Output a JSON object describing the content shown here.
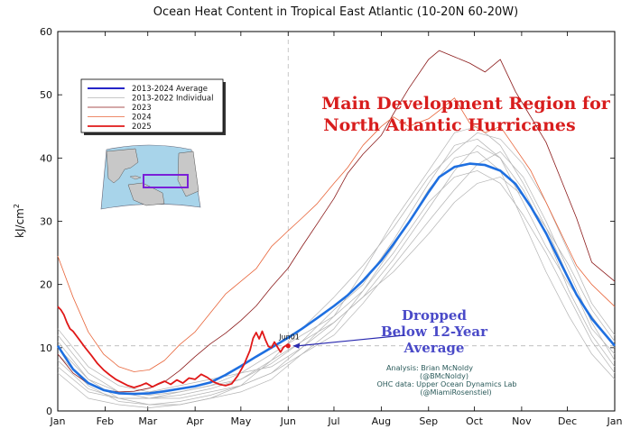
{
  "chart_data": {
    "type": "line",
    "title": "Ocean Heat Content in Tropical East Atlantic (10-20N 60-20W)",
    "xlabel": "",
    "ylabel": "kJ/cm",
    "ylabel_superscript": "2",
    "xlim": [
      0,
      365
    ],
    "ylim": [
      0,
      60
    ],
    "yticks": [
      0,
      10,
      20,
      30,
      40,
      50,
      60
    ],
    "month_labels": [
      "Jan",
      "Feb",
      "Mar",
      "Apr",
      "May",
      "Jun",
      "Jul",
      "Aug",
      "Sep",
      "Oct",
      "Nov",
      "Dec",
      "Jan"
    ],
    "month_days": [
      0,
      31,
      59,
      90,
      120,
      151,
      181,
      212,
      243,
      273,
      304,
      334,
      365
    ],
    "reference_line": {
      "y": 10.3,
      "style": "dashed"
    },
    "vline_day": 151,
    "legend": {
      "position": "upper-left",
      "entries": [
        {
          "label": "2013-2024 Average",
          "color": "#2626c8",
          "width": 2
        },
        {
          "label": "2013-2022 Individual",
          "color": "#b4b4b4",
          "width": 0.8
        },
        {
          "label": "2023",
          "color": "#8b1a1a",
          "width": 0.8
        },
        {
          "label": "2024",
          "color": "#e8653a",
          "width": 0.8
        },
        {
          "label": "2025",
          "color": "#e01818",
          "width": 1.8
        }
      ]
    },
    "series": [
      {
        "name": "2013-2024 Average",
        "color": "#1e6fe0",
        "width": 2.6,
        "x": [
          0,
          10,
          20,
          30,
          40,
          50,
          60,
          70,
          80,
          90,
          100,
          110,
          120,
          130,
          140,
          151,
          160,
          170,
          181,
          190,
          200,
          212,
          220,
          230,
          243,
          250,
          260,
          270,
          280,
          290,
          300,
          310,
          320,
          330,
          340,
          350,
          365
        ],
        "y": [
          10.3,
          6.6,
          4.4,
          3.3,
          2.8,
          2.7,
          2.8,
          3.1,
          3.5,
          3.9,
          4.5,
          5.7,
          7.1,
          8.6,
          10.0,
          11.6,
          13.0,
          14.7,
          16.6,
          18.3,
          20.6,
          23.8,
          26.4,
          29.8,
          34.6,
          37.0,
          38.6,
          39.1,
          38.9,
          38.0,
          35.9,
          32.3,
          28.1,
          23.2,
          18.4,
          14.6,
          10.3
        ]
      },
      {
        "name": "2025",
        "color": "#e01818",
        "width": 1.8,
        "x": [
          0,
          2,
          4,
          6,
          8,
          10,
          14,
          18,
          22,
          26,
          30,
          34,
          38,
          42,
          46,
          50,
          54,
          58,
          62,
          66,
          70,
          74,
          78,
          82,
          86,
          90,
          94,
          98,
          102,
          106,
          110,
          114,
          118,
          122,
          126,
          128,
          130,
          132,
          134,
          136,
          138,
          140,
          142,
          144,
          146,
          148,
          150,
          151
        ],
        "y": [
          16.5,
          16.0,
          15.2,
          14.0,
          13.0,
          12.6,
          11.3,
          10.0,
          8.8,
          7.5,
          6.5,
          5.7,
          5.0,
          4.5,
          4.0,
          3.7,
          4.0,
          4.4,
          3.8,
          4.3,
          4.7,
          4.2,
          4.9,
          4.4,
          5.2,
          5.0,
          5.8,
          5.3,
          4.6,
          4.2,
          4.0,
          4.3,
          5.6,
          7.3,
          9.6,
          11.5,
          12.4,
          11.4,
          12.6,
          11.3,
          10.2,
          10.0,
          10.9,
          10.1,
          9.3,
          10.1,
          10.4,
          10.3
        ]
      },
      {
        "name": "2024",
        "color": "#e8653a",
        "width": 0.8,
        "x": [
          0,
          10,
          20,
          30,
          40,
          50,
          60,
          70,
          80,
          90,
          100,
          110,
          120,
          130,
          140,
          151,
          160,
          170,
          181,
          190,
          200,
          212,
          220,
          230,
          243,
          250,
          260,
          270,
          280,
          290,
          300,
          310,
          320,
          330,
          340,
          350,
          365
        ],
        "y": [
          24.5,
          18.0,
          12.5,
          9.0,
          7.0,
          6.2,
          6.5,
          8.0,
          10.5,
          12.5,
          15.5,
          18.5,
          20.5,
          22.5,
          26.0,
          28.5,
          30.5,
          32.8,
          36.0,
          38.5,
          42.0,
          45.0,
          46.5,
          45.0,
          46.2,
          47.5,
          49.5,
          45.5,
          44.0,
          45.0,
          41.5,
          38.0,
          33.0,
          28.0,
          23.0,
          20.0,
          16.5
        ]
      },
      {
        "name": "2023",
        "color": "#8b1a1a",
        "width": 0.8,
        "x": [
          0,
          10,
          20,
          30,
          40,
          50,
          60,
          70,
          80,
          90,
          100,
          110,
          120,
          130,
          140,
          151,
          160,
          170,
          181,
          190,
          200,
          212,
          220,
          230,
          243,
          250,
          260,
          270,
          280,
          290,
          300,
          310,
          320,
          330,
          340,
          350,
          365
        ],
        "y": [
          9.0,
          6.0,
          4.3,
          3.3,
          3.0,
          3.1,
          3.6,
          4.6,
          6.4,
          8.6,
          10.6,
          12.3,
          14.3,
          16.6,
          19.6,
          22.6,
          26.0,
          29.6,
          33.6,
          37.6,
          40.6,
          43.6,
          47.0,
          51.0,
          55.6,
          57.0,
          56.0,
          55.0,
          53.6,
          55.6,
          50.5,
          46.5,
          42.5,
          36.5,
          30.5,
          23.5,
          20.5
        ]
      },
      {
        "name": "2013-2022 Individual (A)",
        "color": "#b4b4b4",
        "width": 0.7,
        "x": [
          0,
          20,
          40,
          60,
          80,
          100,
          120,
          140,
          160,
          181,
          200,
          220,
          243,
          260,
          275,
          290,
          305,
          320,
          335,
          350,
          365
        ],
        "y": [
          8.0,
          3.5,
          2.0,
          2.0,
          2.5,
          3.5,
          5.0,
          7.5,
          11.0,
          16.0,
          20.0,
          27.0,
          36.0,
          42.0,
          43.0,
          40.0,
          35.0,
          28.0,
          19.0,
          12.0,
          7.0
        ]
      },
      {
        "name": "2013-2022 Individual (B)",
        "color": "#b4b4b4",
        "width": 0.7,
        "x": [
          0,
          20,
          40,
          60,
          80,
          100,
          120,
          140,
          160,
          181,
          200,
          220,
          243,
          260,
          275,
          290,
          305,
          320,
          335,
          350,
          365
        ],
        "y": [
          11.0,
          5.0,
          3.0,
          2.5,
          3.0,
          4.0,
          6.0,
          9.0,
          12.0,
          15.0,
          19.0,
          25.0,
          33.0,
          37.0,
          38.0,
          36.0,
          31.0,
          25.0,
          18.0,
          11.0,
          6.0
        ]
      },
      {
        "name": "2013-2022 Individual (C)",
        "color": "#b4b4b4",
        "width": 0.7,
        "x": [
          0,
          20,
          40,
          60,
          80,
          100,
          120,
          140,
          160,
          181,
          200,
          220,
          243,
          260,
          275,
          290,
          305,
          320,
          335,
          350,
          365
        ],
        "y": [
          13.0,
          7.0,
          4.0,
          3.0,
          4.0,
          5.0,
          6.0,
          7.0,
          10.0,
          14.0,
          18.0,
          24.0,
          32.0,
          38.0,
          42.0,
          40.0,
          33.0,
          26.0,
          20.0,
          15.0,
          10.0
        ]
      },
      {
        "name": "2013-2022 Individual (D)",
        "color": "#b4b4b4",
        "width": 0.7,
        "x": [
          0,
          20,
          40,
          60,
          80,
          100,
          120,
          140,
          160,
          181,
          200,
          220,
          243,
          260,
          275,
          290,
          305,
          320,
          335,
          350,
          365
        ],
        "y": [
          9.0,
          4.0,
          1.5,
          1.0,
          1.5,
          2.5,
          4.0,
          6.0,
          9.0,
          12.0,
          17.0,
          23.0,
          30.0,
          35.0,
          39.0,
          41.0,
          37.0,
          30.0,
          22.0,
          14.0,
          8.0
        ]
      },
      {
        "name": "2013-2022 Individual (E)",
        "color": "#b4b4b4",
        "width": 0.7,
        "x": [
          0,
          20,
          40,
          60,
          80,
          100,
          120,
          140,
          160,
          181,
          200,
          220,
          243,
          260,
          275,
          290,
          305,
          320,
          335,
          350,
          365
        ],
        "y": [
          7.0,
          3.0,
          2.0,
          2.0,
          2.0,
          3.0,
          4.0,
          6.0,
          10.0,
          15.0,
          22.0,
          30.0,
          38.0,
          44.0,
          45.0,
          42.0,
          36.0,
          29.0,
          21.0,
          13.0,
          9.0
        ]
      },
      {
        "name": "2013-2022 Individual (F)",
        "color": "#b4b4b4",
        "width": 0.7,
        "x": [
          0,
          20,
          40,
          60,
          80,
          100,
          120,
          140,
          160,
          181,
          200,
          220,
          243,
          260,
          275,
          290,
          305,
          320,
          335,
          350,
          365
        ],
        "y": [
          12.0,
          6.0,
          3.0,
          2.0,
          3.0,
          4.0,
          5.0,
          8.0,
          11.0,
          14.0,
          18.0,
          22.0,
          28.0,
          33.0,
          36.0,
          37.0,
          34.0,
          29.0,
          23.0,
          16.0,
          11.0
        ]
      },
      {
        "name": "2013-2022 Individual (G)",
        "color": "#b4b4b4",
        "width": 0.7,
        "x": [
          0,
          20,
          40,
          60,
          80,
          100,
          120,
          140,
          160,
          181,
          200,
          220,
          243,
          260,
          275,
          290,
          305,
          320,
          335,
          350,
          365
        ],
        "y": [
          10.0,
          5.0,
          2.0,
          1.0,
          1.0,
          2.0,
          3.0,
          5.0,
          9.0,
          13.0,
          19.0,
          26.0,
          35.0,
          40.0,
          41.0,
          38.0,
          30.0,
          22.0,
          15.0,
          9.0,
          5.0
        ]
      },
      {
        "name": "2013-2022 Individual (H)",
        "color": "#b4b4b4",
        "width": 0.7,
        "x": [
          0,
          20,
          40,
          60,
          80,
          100,
          120,
          140,
          160,
          181,
          200,
          220,
          243,
          260,
          275,
          290,
          305,
          320,
          335,
          350,
          365
        ],
        "y": [
          6.0,
          2.0,
          1.0,
          0.5,
          1.0,
          2.0,
          4.0,
          8.0,
          13.0,
          18.0,
          23.0,
          29.0,
          37.0,
          41.0,
          44.0,
          43.0,
          39.0,
          33.0,
          25.0,
          17.0,
          12.0
        ]
      }
    ],
    "annotations": {
      "mdr_line1": "Main Development Region for",
      "mdr_line2": "North Atlantic Hurricanes",
      "dropped_line1": "Dropped",
      "dropped_line2": "Below 12-Year",
      "dropped_line3": "Average",
      "jun_label": "Jun01",
      "jun_point": {
        "x": 151,
        "y": 10.3
      },
      "credit_line1": "Analysis: Brian McNoldy",
      "credit_line2": "(@BMcNoldy)",
      "credit_line3": "OHC data: Upper Ocean Dynamics Lab",
      "credit_line4": "(@MiamiRosenstiel)"
    }
  }
}
